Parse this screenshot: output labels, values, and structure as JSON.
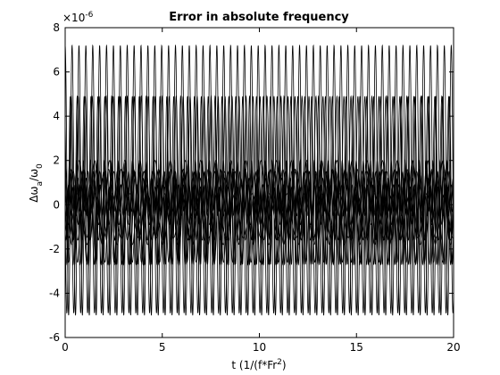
{
  "chart_data": {
    "type": "line",
    "title": "Error in absolute frequency",
    "xlabel": {
      "base": "t (1/(f*Fr",
      "sup": "2",
      "tail": ")"
    },
    "ylabel": {
      "delta": "Δω",
      "sub": "a",
      "rest": "/ω",
      "sub2": "0"
    },
    "y_exponent": {
      "base": "×10",
      "exp": "-6"
    },
    "xlim": [
      0,
      20
    ],
    "ylim": [
      -6,
      8
    ],
    "xticks": [
      0,
      5,
      10,
      15,
      20
    ],
    "yticks": [
      -6,
      -4,
      -2,
      0,
      2,
      4,
      6,
      8
    ],
    "xtick_labels": [
      "0",
      "5",
      "10",
      "15",
      "20"
    ],
    "ytick_labels": [
      "-6",
      "-4",
      "-2",
      "0",
      "2",
      "4",
      "6",
      "8"
    ],
    "grid": false,
    "box": true,
    "series": [
      {
        "offset": 1.1,
        "amplitude": 6.1,
        "period": 0.355,
        "phase": 0.0
      },
      {
        "offset": 0.0,
        "amplitude": 4.9,
        "period": 0.355,
        "phase": 1.6
      },
      {
        "offset": 1.1,
        "amplitude": 3.8,
        "period": 0.36,
        "phase": 0.8
      },
      {
        "offset": -0.35,
        "amplitude": 2.35,
        "period": 0.36,
        "phase": 2.3
      },
      {
        "offset": 0.1,
        "amplitude": 1.9,
        "period": 0.78,
        "phase": 0.4
      },
      {
        "offset": 0.0,
        "amplitude": 1.6,
        "period": 0.64,
        "phase": 3.1
      },
      {
        "offset": 0.3,
        "amplitude": 1.2,
        "period": 0.52,
        "phase": 1.2
      },
      {
        "offset": -0.2,
        "amplitude": 1.4,
        "period": 0.42,
        "phase": 2.7
      },
      {
        "offset": 0.6,
        "amplitude": 0.9,
        "period": 0.3,
        "phase": 0.5
      },
      {
        "offset": -0.5,
        "amplitude": 1.0,
        "period": 0.9,
        "phase": 1.9
      },
      {
        "offset": 0.2,
        "amplitude": 0.7,
        "period": 0.27,
        "phase": 2.2
      },
      {
        "offset": -0.9,
        "amplitude": 1.7,
        "period": 0.47,
        "phase": 0.9
      }
    ]
  }
}
